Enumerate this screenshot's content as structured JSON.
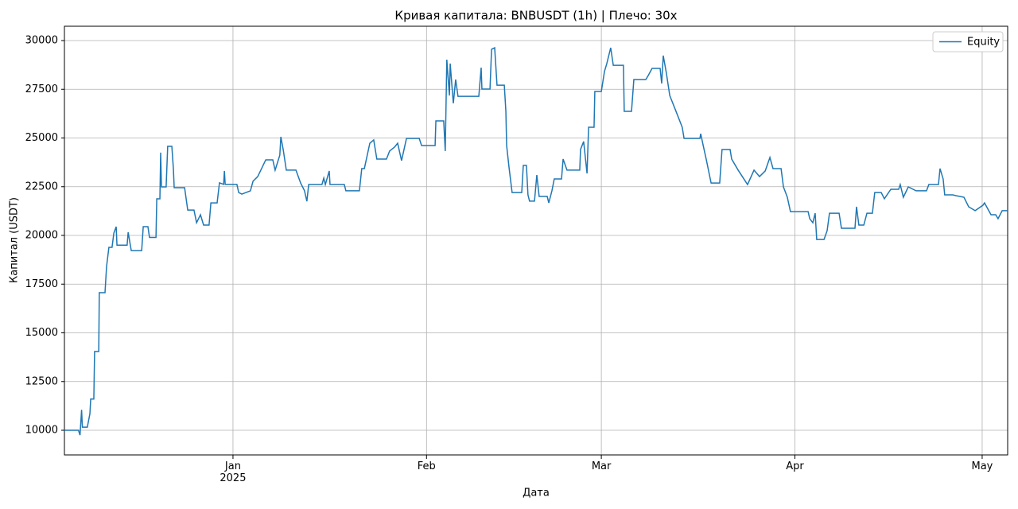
{
  "chart_data": {
    "type": "line",
    "title": "Кривая капитала: BNBUSDT (1h) | Плечо: 30x",
    "xlabel": "Дата",
    "ylabel": "Капитал (USDT)",
    "legend": "upper right",
    "grid": true,
    "xlim": [
      "2024-12-05T00:00",
      "2025-05-05T02:00"
    ],
    "xticks": [
      {
        "value": "2025-01-01T00:00",
        "label": "Jan\n2025"
      },
      {
        "value": "2025-02-01T00:00",
        "label": "Feb"
      },
      {
        "value": "2025-03-01T00:00",
        "label": "Mar"
      },
      {
        "value": "2025-04-01T00:00",
        "label": "Apr"
      },
      {
        "value": "2025-05-01T00:00",
        "label": "May"
      }
    ],
    "ylim": [
      8735,
      30735
    ],
    "yticks": [
      10000,
      12500,
      15000,
      17500,
      20000,
      22500,
      25000,
      27500,
      30000
    ],
    "x": [
      "2024-12-05T00:00",
      "2024-12-07T06:00",
      "2024-12-07T12:00",
      "2024-12-07T18:00",
      "2024-12-07T21:00",
      "2024-12-08T16:00",
      "2024-12-09T02:00",
      "2024-12-09T05:00",
      "2024-12-09T17:00",
      "2024-12-09T20:00",
      "2024-12-10T12:00",
      "2024-12-10T14:00",
      "2024-12-11T12:00",
      "2024-12-11T18:00",
      "2024-12-12T03:00",
      "2024-12-12T15:00",
      "2024-12-12T22:00",
      "2024-12-13T07:00",
      "2024-12-13T10:00",
      "2024-12-15T01:00",
      "2024-12-15T05:00",
      "2024-12-15T17:00",
      "2024-12-17T09:00",
      "2024-12-17T15:00",
      "2024-12-18T09:00",
      "2024-12-18T15:00",
      "2024-12-19T16:00",
      "2024-12-19T19:00",
      "2024-12-20T07:00",
      "2024-12-20T10:00",
      "2024-12-20T13:00",
      "2024-12-21T07:00",
      "2024-12-21T13:00",
      "2024-12-22T05:00",
      "2024-12-22T11:00",
      "2024-12-22T14:00",
      "2024-12-24T06:00",
      "2024-12-24T12:00",
      "2024-12-24T18:00",
      "2024-12-25T18:00",
      "2024-12-26T04:00",
      "2024-12-26T19:00",
      "2024-12-27T07:00",
      "2024-12-28T04:00",
      "2024-12-28T11:00",
      "2024-12-29T11:00",
      "2024-12-29T20:00",
      "2024-12-30T12:00",
      "2024-12-30T15:00",
      "2024-12-30T18:00",
      "2025-01-01T15:00",
      "2025-01-01T22:00",
      "2025-01-02T10:00",
      "2025-01-03T19:00",
      "2025-01-04T05:00",
      "2025-01-04T23:00",
      "2025-01-05T11:00",
      "2025-01-06T06:00",
      "2025-01-07T09:00",
      "2025-01-07T18:00",
      "2025-01-08T12:00",
      "2025-01-08T16:00",
      "2025-01-09T01:00",
      "2025-01-09T13:00",
      "2025-01-11T02:00",
      "2025-01-11T20:00",
      "2025-01-12T11:00",
      "2025-01-12T20:00",
      "2025-01-13T03:00",
      "2025-01-15T06:00",
      "2025-01-15T13:00",
      "2025-01-15T19:00",
      "2025-01-16T10:00",
      "2025-01-16T13:00",
      "2025-01-18T20:00",
      "2025-01-19T02:00",
      "2025-01-21T06:00",
      "2025-01-21T15:00",
      "2025-01-22T01:00",
      "2025-01-22T22:00",
      "2025-01-23T13:00",
      "2025-01-24T01:00",
      "2025-01-25T14:00",
      "2025-01-26T02:00",
      "2025-01-26T21:00",
      "2025-01-27T09:00",
      "2025-01-28T00:00",
      "2025-01-28T19:00",
      "2025-01-30T20:00",
      "2025-01-31T05:00",
      "2025-02-02T09:00",
      "2025-02-02T12:00",
      "2025-02-03T18:00",
      "2025-02-04T00:00",
      "2025-02-04T06:00",
      "2025-02-04T16:00",
      "2025-02-04T19:00",
      "2025-02-05T07:00",
      "2025-02-05T16:00",
      "2025-02-06T01:00",
      "2025-02-09T09:00",
      "2025-02-09T18:00",
      "2025-02-09T21:00",
      "2025-02-11T04:00",
      "2025-02-11T10:00",
      "2025-02-11T22:00",
      "2025-02-12T07:00",
      "2025-02-13T11:00",
      "2025-02-13T17:00",
      "2025-02-13T20:00",
      "2025-02-14T05:00",
      "2025-02-14T17:00",
      "2025-02-16T06:00",
      "2025-02-16T12:00",
      "2025-02-17T00:00",
      "2025-02-17T06:00",
      "2025-02-17T12:00",
      "2025-02-18T07:00",
      "2025-02-18T16:00",
      "2025-02-19T01:00",
      "2025-02-20T08:00",
      "2025-02-20T14:00",
      "2025-02-21T02:00",
      "2025-02-21T11:00",
      "2025-02-22T15:00",
      "2025-02-22T21:00",
      "2025-02-23T12:00",
      "2025-02-25T13:00",
      "2025-02-25T16:00",
      "2025-02-26T04:00",
      "2025-02-26T17:00",
      "2025-02-26T23:00",
      "2025-02-27T20:00",
      "2025-02-27T23:00",
      "2025-03-01T00:00",
      "2025-03-01T12:00",
      "2025-03-01T21:00",
      "2025-03-02T12:00",
      "2025-03-02T22:00",
      "2025-03-04T13:00",
      "2025-03-04T16:00",
      "2025-03-05T20:00",
      "2025-03-06T05:00",
      "2025-03-08T03:00",
      "2025-03-08T12:00",
      "2025-03-09T03:00",
      "2025-03-10T10:00",
      "2025-03-10T16:00",
      "2025-03-10T22:00",
      "2025-03-11T10:00",
      "2025-03-11T23:00",
      "2025-03-12T23:00",
      "2025-03-13T23:00",
      "2025-03-14T06:00",
      "2025-03-16T19:00",
      "2025-03-16T22:00",
      "2025-03-17T07:00",
      "2025-03-17T19:00",
      "2025-03-18T14:00",
      "2025-03-19T23:00",
      "2025-03-20T08:00",
      "2025-03-21T15:00",
      "2025-03-21T21:00",
      "2025-03-22T22:00",
      "2025-03-24T10:00",
      "2025-03-25T11:00",
      "2025-03-26T08:00",
      "2025-03-27T06:00",
      "2025-03-28T00:00",
      "2025-03-28T12:00",
      "2025-03-29T19:00",
      "2025-03-30T04:00",
      "2025-03-30T19:00",
      "2025-03-31T07:00",
      "2025-04-03T03:00",
      "2025-04-03T09:00",
      "2025-04-03T21:00",
      "2025-04-04T06:00",
      "2025-04-04T12:00",
      "2025-04-05T16:00",
      "2025-04-06T04:00",
      "2025-04-06T13:00",
      "2025-04-08T02:00",
      "2025-04-08T11:00",
      "2025-04-10T15:00",
      "2025-04-10T21:00",
      "2025-04-11T06:00",
      "2025-04-12T01:00",
      "2025-04-12T13:00",
      "2025-04-13T10:00",
      "2025-04-13T19:00",
      "2025-04-14T20:00",
      "2025-04-15T08:00",
      "2025-04-16T09:00",
      "2025-04-17T15:00",
      "2025-04-17T21:00",
      "2025-04-18T09:00",
      "2025-04-19T04:00",
      "2025-04-20T10:00",
      "2025-04-22T02:00",
      "2025-04-22T11:00",
      "2025-04-24T00:00",
      "2025-04-24T06:00",
      "2025-04-24T18:00",
      "2025-04-25T00:00",
      "2025-04-26T07:00",
      "2025-04-26T19:00",
      "2025-04-28T02:00",
      "2025-04-28T20:00",
      "2025-04-29T21:00",
      "2025-05-01T03:00",
      "2025-05-01T09:00",
      "2025-05-02T10:00",
      "2025-05-03T04:00",
      "2025-05-03T13:00",
      "2025-05-04T05:00",
      "2025-05-05T02:00"
    ],
    "series": [
      {
        "name": "Equity",
        "color": "#1f77b4",
        "values": [
          10000,
          10000,
          9750,
          11050,
          10160,
          10160,
          10850,
          11600,
          11600,
          14040,
          14040,
          17060,
          17060,
          18400,
          19390,
          19390,
          20120,
          20450,
          19500,
          19500,
          20160,
          19220,
          19220,
          20450,
          20450,
          19900,
          19900,
          21880,
          21880,
          24250,
          22490,
          22490,
          24570,
          24570,
          23390,
          22450,
          22450,
          21880,
          21300,
          21300,
          20650,
          21060,
          20530,
          20530,
          21670,
          21670,
          22700,
          22620,
          23310,
          22620,
          22620,
          22200,
          22120,
          22290,
          22780,
          23020,
          23350,
          23880,
          23880,
          23350,
          24120,
          25060,
          24410,
          23350,
          23350,
          22690,
          22290,
          21750,
          22610,
          22610,
          22940,
          22610,
          23310,
          22610,
          22610,
          22290,
          22290,
          23430,
          23430,
          24730,
          24900,
          23920,
          23920,
          24330,
          24530,
          24730,
          23840,
          24980,
          24980,
          24610,
          24610,
          25880,
          25880,
          24330,
          29020,
          27180,
          28820,
          26780,
          28000,
          27140,
          27140,
          28610,
          27510,
          27510,
          29550,
          29630,
          27710,
          27710,
          26370,
          24610,
          23510,
          22200,
          22200,
          23590,
          23590,
          22080,
          21760,
          21760,
          23100,
          22000,
          22000,
          21670,
          22290,
          22900,
          22900,
          23920,
          23350,
          23350,
          24410,
          24820,
          23180,
          25550,
          25550,
          27390,
          27390,
          28410,
          28820,
          29630,
          28730,
          28730,
          26370,
          26370,
          28000,
          28000,
          28200,
          28570,
          28570,
          27800,
          29230,
          28330,
          27180,
          26370,
          25550,
          24980,
          24980,
          25220,
          24650,
          23920,
          22690,
          22690,
          24410,
          24410,
          23920,
          23350,
          22610,
          23350,
          23020,
          23310,
          24000,
          23430,
          23430,
          22490,
          21960,
          21220,
          21220,
          20860,
          20650,
          21140,
          19790,
          19790,
          20240,
          21140,
          21140,
          20370,
          20370,
          21470,
          20530,
          20530,
          21140,
          21140,
          22200,
          22200,
          21880,
          22370,
          22370,
          22610,
          21960,
          22490,
          22290,
          22290,
          22610,
          22610,
          23430,
          22900,
          22080,
          22080,
          22040,
          21960,
          21470,
          21270,
          21550,
          21670,
          21060,
          21060,
          20860,
          21270,
          21270
        ]
      }
    ]
  }
}
